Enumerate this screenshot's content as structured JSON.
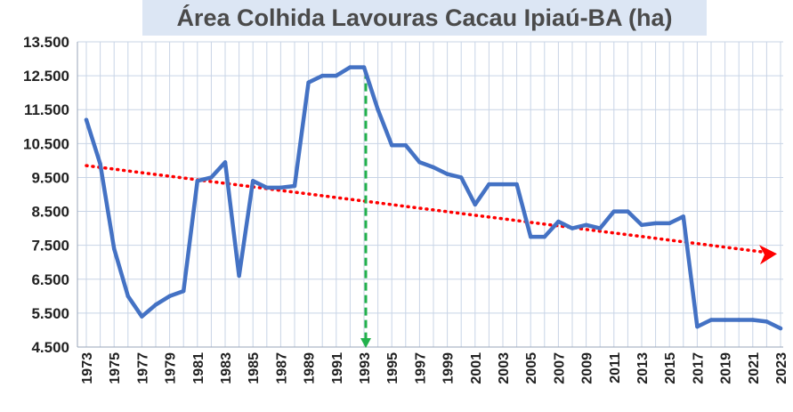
{
  "chart_data": {
    "type": "line",
    "title": "Área Colhida Lavouras Cacau Ipiaú-BA (ha)",
    "xlabel": "",
    "ylabel": "",
    "ylim": [
      4500,
      13500
    ],
    "yticks": [
      "4.500",
      "5.500",
      "6.500",
      "7.500",
      "8.500",
      "9.500",
      "10.500",
      "11.500",
      "12.500",
      "13.500"
    ],
    "xticks": [
      "1973",
      "1975",
      "1977",
      "1979",
      "1981",
      "1983",
      "1985",
      "1987",
      "1989",
      "1991",
      "1993",
      "1995",
      "1997",
      "1999",
      "2001",
      "2003",
      "2005",
      "2007",
      "2009",
      "2011",
      "2013",
      "2015",
      "2017",
      "2019",
      "2021",
      "2023"
    ],
    "grid": true,
    "legend": "none",
    "series": [
      {
        "color": "#4472c4",
        "x": [
          1973,
          1974,
          1975,
          1976,
          1977,
          1978,
          1979,
          1980,
          1981,
          1982,
          1983,
          1984,
          1985,
          1986,
          1987,
          1988,
          1989,
          1990,
          1991,
          1992,
          1993,
          1994,
          1995,
          1996,
          1997,
          1998,
          1999,
          2000,
          2001,
          2002,
          2003,
          2004,
          2005,
          2006,
          2007,
          2008,
          2009,
          2010,
          2011,
          2012,
          2013,
          2014,
          2015,
          2016,
          2017,
          2018,
          2019,
          2020,
          2021,
          2022,
          2023
        ],
        "y": [
          11200,
          9900,
          7400,
          6000,
          5400,
          5750,
          6000,
          6150,
          9400,
          9500,
          9950,
          6600,
          9400,
          9200,
          9200,
          9250,
          12300,
          12500,
          12500,
          12750,
          12750,
          11500,
          10450,
          10450,
          9950,
          9800,
          9600,
          9500,
          8700,
          9300,
          9300,
          9300,
          7750,
          7750,
          8200,
          8000,
          8100,
          8000,
          8500,
          8500,
          8100,
          8150,
          8150,
          8350,
          5100,
          5300,
          5300,
          5300,
          5300,
          5250,
          5050
        ]
      }
    ],
    "trendline": {
      "color": "#ff0000",
      "style": "dotted",
      "from": [
        1973,
        9850
      ],
      "to": [
        2023,
        7250
      ],
      "arrow": true
    },
    "annotation": {
      "type": "vertical-arrow",
      "color": "#22b14c",
      "style": "dashed",
      "x": 1993,
      "from_y": 12750,
      "to_y": 4500
    }
  }
}
